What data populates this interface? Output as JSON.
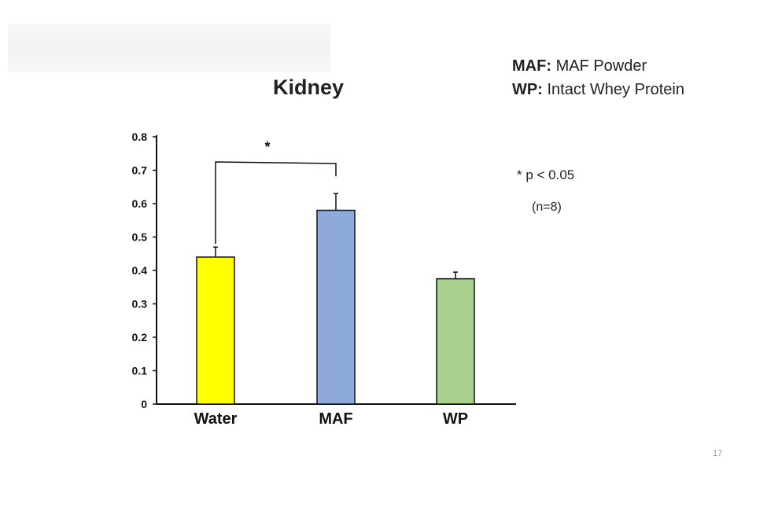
{
  "slide": {
    "page_number": "17"
  },
  "legend": {
    "items": [
      {
        "abbr": "MAF",
        "separator": ":",
        "full_name": "MAF Powder"
      },
      {
        "abbr": "WP",
        "separator": ":",
        "full_name": "Intact Whey Protein"
      }
    ]
  },
  "notes": {
    "significance": "* p < 0.05",
    "sample_size": "(n=8)"
  },
  "colors": {
    "axis": "#111111",
    "bar_outline": "#111111",
    "water_fill": "#ffff00",
    "maf_fill": "#8eaadb",
    "wp_fill": "#a9d18e"
  },
  "chart_data": {
    "type": "bar",
    "title": "Kidney",
    "xlabel": "",
    "ylabel": "",
    "ylim": [
      0,
      0.8
    ],
    "y_ticks": [
      "0",
      "0.1",
      "0.2",
      "0.3",
      "0.4",
      "0.5",
      "0.6",
      "0.7",
      "0.8"
    ],
    "categories": [
      "Water",
      "MAF",
      "WP"
    ],
    "values": [
      0.44,
      0.58,
      0.375
    ],
    "error": [
      0.03,
      0.05,
      0.02
    ],
    "bar_colors": [
      "#ffff00",
      "#8eaadb",
      "#a9d18e"
    ],
    "grid": false,
    "significance": [
      {
        "from": "Water",
        "to": "MAF",
        "label": "*"
      }
    ]
  }
}
